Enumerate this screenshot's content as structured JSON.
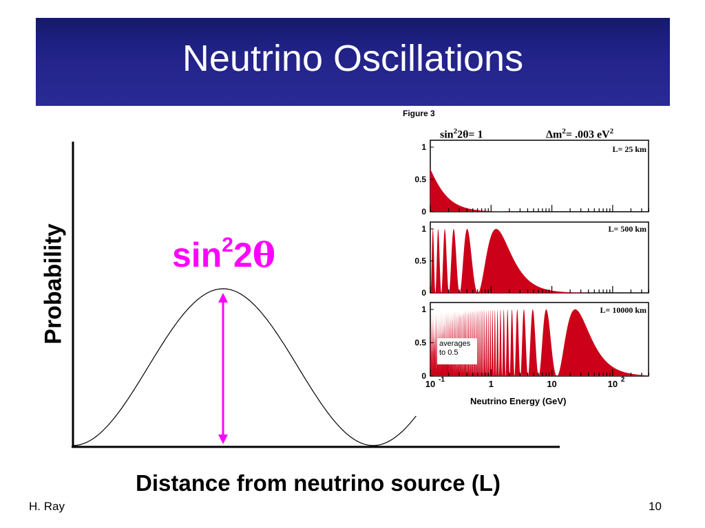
{
  "slide": {
    "title": "Neutrino Oscillations",
    "footer_left": "H. Ray",
    "page_number": "10"
  },
  "colors": {
    "title_bar": "#23238a",
    "amplitude": "#ff00ff",
    "oscillation_fill": "#cc0018"
  },
  "chart_data": [
    {
      "type": "line",
      "title": "",
      "xlabel": "Distance from neutrino source (L)",
      "ylabel": "Probability",
      "series": [
        {
          "curve": "P(L) = sin²2θ · sin²(kL)",
          "x_range": [
            0,
            1.3
          ],
          "peak_x": 0.5,
          "zero_x": 1.0
        }
      ],
      "annotation": {
        "base": "sin",
        "superscript": "2",
        "rest": "2",
        "symbol": "θ",
        "meaning": "amplitude arrow from axis to curve peak"
      }
    },
    {
      "type": "area",
      "caption": "Figure 3",
      "header_left": {
        "base": "sin",
        "sup": "2",
        "rest": "2θ= 1"
      },
      "header_right": {
        "prefix": "Δm",
        "sup1": "2",
        "mid": "= .003 eV",
        "sup2": "2"
      },
      "xlabel": "Neutrino Energy (GeV)",
      "x_scale": "log",
      "xlim": [
        0.1,
        400
      ],
      "x_ticks": [
        {
          "value": 0.1,
          "base": "10",
          "exp": "-1"
        },
        {
          "value": 1,
          "base": "1",
          "exp": ""
        },
        {
          "value": 10,
          "base": "10",
          "exp": ""
        },
        {
          "value": 100,
          "base": "10",
          "exp": "2"
        }
      ],
      "y_ticks": [
        "0",
        "0.5",
        "1"
      ],
      "ylim": [
        0,
        1
      ],
      "dm2_eV2": 0.003,
      "sin2_2theta": 1,
      "panels": [
        {
          "label": "L= 25 km",
          "L_km": 25
        },
        {
          "label": "L= 500 km",
          "L_km": 500
        },
        {
          "label": "L= 10000 km",
          "L_km": 10000,
          "note": [
            "averages",
            "to 0.5"
          ]
        }
      ]
    }
  ]
}
